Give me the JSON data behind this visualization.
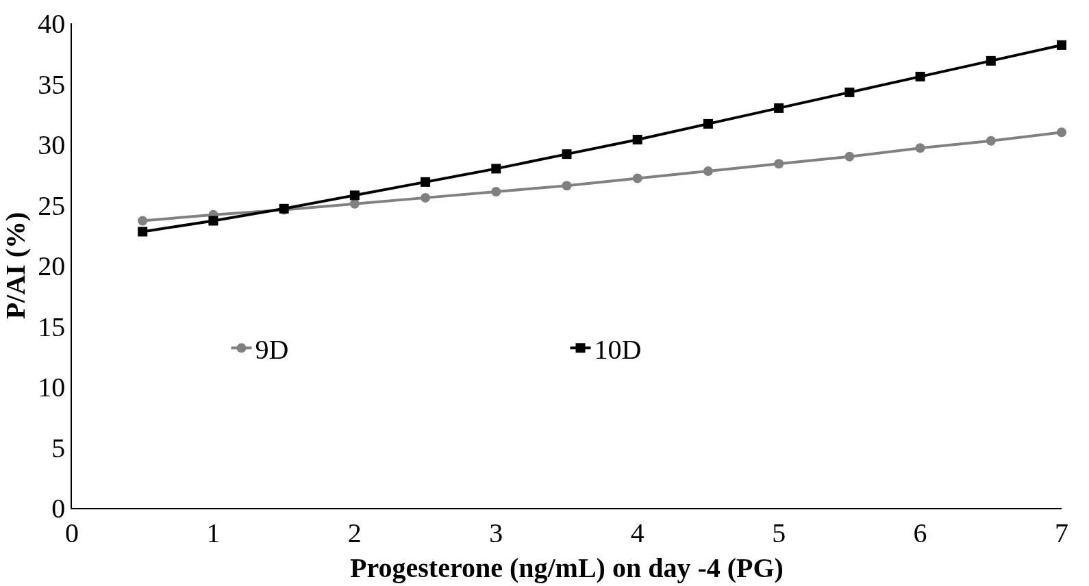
{
  "chart_data": {
    "type": "line",
    "xlabel": "Progesterone (ng/mL) on day -4 (PG)",
    "ylabel": "P/AI (%)",
    "x": [
      0.5,
      1,
      1.5,
      2,
      2.5,
      3,
      3.5,
      4,
      4.5,
      5,
      5.5,
      6,
      6.5,
      7
    ],
    "series": [
      {
        "name": "9D",
        "color": "#808080",
        "marker": "circle",
        "values": [
          23.7,
          24.2,
          24.6,
          25.1,
          25.6,
          26.1,
          26.6,
          27.2,
          27.8,
          28.4,
          29.0,
          29.7,
          30.3,
          31.0
        ]
      },
      {
        "name": "10D",
        "color": "#000000",
        "marker": "square",
        "values": [
          22.8,
          23.7,
          24.7,
          25.8,
          26.9,
          28.0,
          29.2,
          30.4,
          31.7,
          33.0,
          34.3,
          35.6,
          36.9,
          38.2
        ]
      }
    ],
    "xlim": [
      0,
      7
    ],
    "xticks": [
      0,
      1,
      2,
      3,
      4,
      5,
      6,
      7
    ],
    "ylim": [
      0,
      40
    ],
    "yticks": [
      0,
      5,
      10,
      15,
      20,
      25,
      30,
      35,
      40
    ],
    "legend": "center",
    "line_style": "solid"
  }
}
